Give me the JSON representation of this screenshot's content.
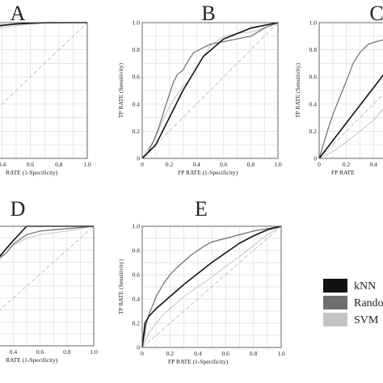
{
  "colors": {
    "knn": "#111111",
    "random_forest": "#6e6e6e",
    "svm": "#c4c4c4",
    "grid": "#dddddd",
    "diagonal": "#b5b5b5",
    "axis": "#555555"
  },
  "legend": {
    "items": [
      {
        "key": "knn",
        "label": "kNN"
      },
      {
        "key": "random_forest",
        "label": "Rando"
      },
      {
        "key": "svm",
        "label": "SVM"
      }
    ]
  },
  "tick_labels_x": [
    "0",
    "0.2",
    "0.4",
    "0.6",
    "0.8",
    "1.0"
  ],
  "tick_labels_y": [
    "0",
    "0.2",
    "0.4",
    "0.6",
    "0.8",
    "1.0"
  ],
  "chart_data": [
    {
      "type": "line",
      "panel": "A",
      "xlabel": "RATE (1-Specificity)",
      "ylabel": "",
      "xlim": [
        0,
        1
      ],
      "ylim": [
        0,
        1
      ],
      "grid": true,
      "series": [
        {
          "key": "knn",
          "name": "kNN",
          "x": [
            0,
            0.02,
            0.05,
            0.1,
            0.15,
            0.2,
            0.3,
            0.5,
            0.7,
            1.0
          ],
          "y": [
            0,
            0.5,
            0.72,
            0.86,
            0.91,
            0.94,
            0.97,
            0.99,
            1.0,
            1.0
          ]
        },
        {
          "key": "random_forest",
          "name": "Rando",
          "x": [
            0,
            0.02,
            0.04,
            0.08,
            0.12,
            0.18,
            0.25,
            0.35,
            0.5,
            0.7,
            1.0
          ],
          "y": [
            0,
            0.6,
            0.75,
            0.85,
            0.9,
            0.93,
            0.95,
            0.97,
            0.99,
            1.0,
            1.0
          ]
        },
        {
          "key": "svm",
          "name": "SVM",
          "x": [
            0,
            0.03,
            0.06,
            0.1,
            0.15,
            0.2,
            0.3,
            0.45,
            0.6,
            1.0
          ],
          "y": [
            0,
            0.55,
            0.74,
            0.84,
            0.9,
            0.92,
            0.95,
            0.97,
            0.99,
            1.0
          ]
        }
      ]
    },
    {
      "type": "line",
      "panel": "B",
      "xlabel": "FP RATE (1-Specificity)",
      "ylabel": "TP RATE (Sensitivity)",
      "xlim": [
        0,
        1
      ],
      "ylim": [
        0,
        1
      ],
      "grid": true,
      "series": [
        {
          "key": "knn",
          "name": "kNN",
          "x": [
            0,
            0.1,
            0.2,
            0.3,
            0.45,
            0.6,
            0.8,
            1.0
          ],
          "y": [
            0,
            0.1,
            0.3,
            0.5,
            0.75,
            0.88,
            0.96,
            1.0
          ]
        },
        {
          "key": "random_forest",
          "name": "Rando",
          "x": [
            0,
            0.04,
            0.08,
            0.12,
            0.16,
            0.2,
            0.23,
            0.26,
            0.3,
            0.34,
            0.38,
            0.42,
            0.46,
            0.5,
            0.55,
            0.6,
            0.7,
            0.8,
            0.9,
            1.0
          ],
          "y": [
            0,
            0.04,
            0.12,
            0.22,
            0.35,
            0.47,
            0.56,
            0.62,
            0.65,
            0.72,
            0.78,
            0.8,
            0.82,
            0.84,
            0.85,
            0.86,
            0.88,
            0.9,
            0.96,
            1.0
          ]
        },
        {
          "key": "svm",
          "name": "SVM",
          "x": [
            0,
            0.05,
            0.1,
            0.15,
            0.2,
            0.25,
            0.3,
            0.35,
            0.4,
            0.5,
            0.6,
            0.7,
            0.8,
            0.9,
            1.0
          ],
          "y": [
            0,
            0.08,
            0.15,
            0.28,
            0.38,
            0.46,
            0.53,
            0.58,
            0.67,
            0.83,
            0.9,
            0.92,
            0.93,
            0.96,
            1.0
          ]
        }
      ]
    },
    {
      "type": "line",
      "panel": "C",
      "xlabel": "FP RATE",
      "ylabel": "TP RATE (Sensitivity)",
      "xlim": [
        0,
        1
      ],
      "ylim": [
        0,
        1
      ],
      "grid": true,
      "series": [
        {
          "key": "knn",
          "name": "kNN",
          "x": [
            0,
            0.2,
            0.4,
            0.6,
            0.8,
            1.0
          ],
          "y": [
            0,
            0.26,
            0.52,
            0.78,
            0.93,
            1.0
          ]
        },
        {
          "key": "random_forest",
          "name": "Rando",
          "x": [
            0,
            0.03,
            0.06,
            0.1,
            0.14,
            0.18,
            0.22,
            0.25,
            0.3,
            0.36,
            0.42,
            0.5,
            0.6,
            0.8,
            1.0
          ],
          "y": [
            0,
            0.1,
            0.2,
            0.32,
            0.42,
            0.52,
            0.62,
            0.7,
            0.78,
            0.84,
            0.86,
            0.88,
            0.92,
            0.97,
            1.0
          ]
        },
        {
          "key": "svm",
          "name": "SVM",
          "x": [
            0,
            0.1,
            0.2,
            0.3,
            0.4,
            0.5,
            0.7,
            1.0
          ],
          "y": [
            0,
            0.05,
            0.12,
            0.2,
            0.28,
            0.4,
            0.7,
            1.0
          ]
        }
      ]
    },
    {
      "type": "line",
      "panel": "D",
      "xlabel": "RATE (1-Specificity)",
      "ylabel": "",
      "xlim": [
        0,
        1
      ],
      "ylim": [
        0,
        1
      ],
      "grid": true,
      "series": [
        {
          "key": "knn",
          "name": "kNN",
          "x": [
            0,
            0.05,
            0.1,
            0.2,
            0.3,
            0.4,
            0.5,
            0.7,
            1.0
          ],
          "y": [
            0,
            0.25,
            0.45,
            0.62,
            0.75,
            0.88,
            1.0,
            1.0,
            1.0
          ]
        },
        {
          "key": "random_forest",
          "name": "Rando",
          "x": [
            0,
            0.05,
            0.1,
            0.15,
            0.2,
            0.25,
            0.3,
            0.35,
            0.4,
            0.5,
            0.6,
            0.8,
            1.0
          ],
          "y": [
            0,
            0.3,
            0.48,
            0.58,
            0.63,
            0.7,
            0.74,
            0.78,
            0.85,
            0.93,
            0.96,
            0.98,
            1.0
          ]
        },
        {
          "key": "svm",
          "name": "SVM",
          "x": [
            0,
            0.05,
            0.1,
            0.2,
            0.3,
            0.4,
            0.5,
            0.6,
            0.8,
            1.0
          ],
          "y": [
            0,
            0.28,
            0.44,
            0.6,
            0.72,
            0.84,
            0.9,
            0.93,
            0.96,
            1.0
          ]
        }
      ]
    },
    {
      "type": "line",
      "panel": "E",
      "xlabel": "FP RATE (1-Specificity)",
      "ylabel": "TP RATE (Sensitivity)",
      "xlim": [
        0,
        1
      ],
      "ylim": [
        0,
        1
      ],
      "grid": true,
      "series": [
        {
          "key": "knn",
          "name": "kNN",
          "x": [
            0,
            0.02,
            0.05,
            0.1,
            0.2,
            0.3,
            0.4,
            0.5,
            0.6,
            0.7,
            0.8,
            0.9,
            1.0
          ],
          "y": [
            0,
            0.2,
            0.26,
            0.32,
            0.42,
            0.52,
            0.61,
            0.7,
            0.78,
            0.86,
            0.92,
            0.97,
            1.0
          ]
        },
        {
          "key": "random_forest",
          "name": "Rando",
          "x": [
            0,
            0.01,
            0.03,
            0.05,
            0.08,
            0.1,
            0.15,
            0.2,
            0.25,
            0.3,
            0.35,
            0.4,
            0.45,
            0.5,
            0.6,
            0.7,
            0.8,
            0.9,
            1.0
          ],
          "y": [
            0,
            0.06,
            0.2,
            0.28,
            0.36,
            0.42,
            0.52,
            0.6,
            0.66,
            0.71,
            0.76,
            0.8,
            0.84,
            0.87,
            0.9,
            0.93,
            0.96,
            0.98,
            1.0
          ]
        },
        {
          "key": "svm",
          "name": "SVM",
          "x": [
            0,
            0.05,
            0.1,
            0.15,
            0.2,
            0.25,
            0.3,
            0.4,
            0.5,
            0.6,
            0.7,
            0.8,
            0.9,
            1.0
          ],
          "y": [
            0,
            0.12,
            0.2,
            0.27,
            0.32,
            0.37,
            0.42,
            0.5,
            0.58,
            0.67,
            0.75,
            0.84,
            0.93,
            1.0
          ]
        }
      ]
    }
  ]
}
